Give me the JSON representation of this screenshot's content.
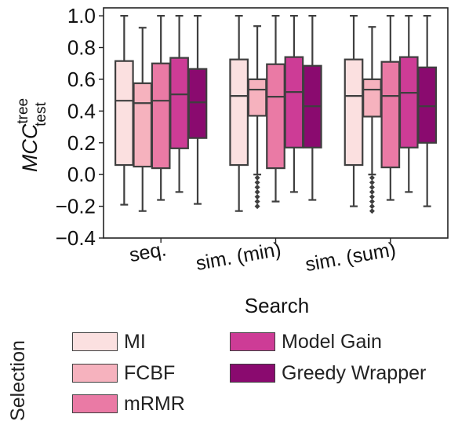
{
  "chart_data": {
    "type": "box",
    "categories": [
      "seq.",
      "sim. (min)",
      "sim. (sum)"
    ],
    "xlabel": "Search",
    "ylabel": "MCC",
    "ylabel_sup": "tree",
    "ylabel_sub": "test",
    "ylim": [
      -0.4,
      1.05
    ],
    "yticks": [
      -0.4,
      -0.2,
      0.0,
      0.2,
      0.4,
      0.6,
      0.8,
      1.0
    ],
    "ytick_labels": [
      "−0.4",
      "−0.2",
      "0.0",
      "0.2",
      "0.4",
      "0.6",
      "0.8",
      "1.0"
    ],
    "legend_title": "Selection",
    "legend_placement": "bottom",
    "series": [
      {
        "name": "MI",
        "color": "#fbe0e0",
        "boxes": [
          {
            "whisker_low": -0.19,
            "q1": 0.06,
            "median": 0.465,
            "q3": 0.715,
            "whisker_high": 1.0,
            "outliers": []
          },
          {
            "whisker_low": -0.23,
            "q1": 0.06,
            "median": 0.495,
            "q3": 0.725,
            "whisker_high": 1.0,
            "outliers": []
          },
          {
            "whisker_low": -0.2,
            "q1": 0.06,
            "median": 0.495,
            "q3": 0.725,
            "whisker_high": 1.0,
            "outliers": []
          }
        ]
      },
      {
        "name": "FCBF",
        "color": "#f6b2be",
        "boxes": [
          {
            "whisker_low": -0.23,
            "q1": 0.05,
            "median": 0.45,
            "q3": 0.575,
            "whisker_high": 0.925,
            "outliers": []
          },
          {
            "whisker_low": 0.0,
            "q1": 0.37,
            "median": 0.535,
            "q3": 0.6,
            "whisker_high": 0.935,
            "outliers": [
              -0.02,
              -0.05,
              -0.08,
              -0.11,
              -0.14,
              -0.17,
              -0.2
            ]
          },
          {
            "whisker_low": 0.0,
            "q1": 0.365,
            "median": 0.535,
            "q3": 0.6,
            "whisker_high": 0.93,
            "outliers": [
              -0.02,
              -0.05,
              -0.08,
              -0.11,
              -0.14,
              -0.17,
              -0.2,
              -0.23
            ]
          }
        ]
      },
      {
        "name": "mRMR",
        "color": "#ea7aa5",
        "boxes": [
          {
            "whisker_low": -0.16,
            "q1": 0.04,
            "median": 0.465,
            "q3": 0.7,
            "whisker_high": 1.0,
            "outliers": []
          },
          {
            "whisker_low": -0.17,
            "q1": 0.04,
            "median": 0.49,
            "q3": 0.695,
            "whisker_high": 1.0,
            "outliers": []
          },
          {
            "whisker_low": -0.16,
            "q1": 0.045,
            "median": 0.495,
            "q3": 0.71,
            "whisker_high": 1.0,
            "outliers": []
          }
        ]
      },
      {
        "name": "Model Gain",
        "color": "#cd3c96",
        "boxes": [
          {
            "whisker_low": -0.11,
            "q1": 0.165,
            "median": 0.505,
            "q3": 0.735,
            "whisker_high": 1.0,
            "outliers": []
          },
          {
            "whisker_low": -0.11,
            "q1": 0.17,
            "median": 0.52,
            "q3": 0.74,
            "whisker_high": 1.0,
            "outliers": []
          },
          {
            "whisker_low": -0.11,
            "q1": 0.17,
            "median": 0.515,
            "q3": 0.74,
            "whisker_high": 1.0,
            "outliers": []
          }
        ]
      },
      {
        "name": "Greedy Wrapper",
        "color": "#8a0a6f",
        "boxes": [
          {
            "whisker_low": -0.185,
            "q1": 0.23,
            "median": 0.455,
            "q3": 0.665,
            "whisker_high": 1.0,
            "outliers": []
          },
          {
            "whisker_low": -0.16,
            "q1": 0.17,
            "median": 0.43,
            "q3": 0.685,
            "whisker_high": 1.0,
            "outliers": []
          },
          {
            "whisker_low": -0.2,
            "q1": 0.2,
            "median": 0.43,
            "q3": 0.675,
            "whisker_high": 1.0,
            "outliers": []
          }
        ]
      }
    ]
  }
}
